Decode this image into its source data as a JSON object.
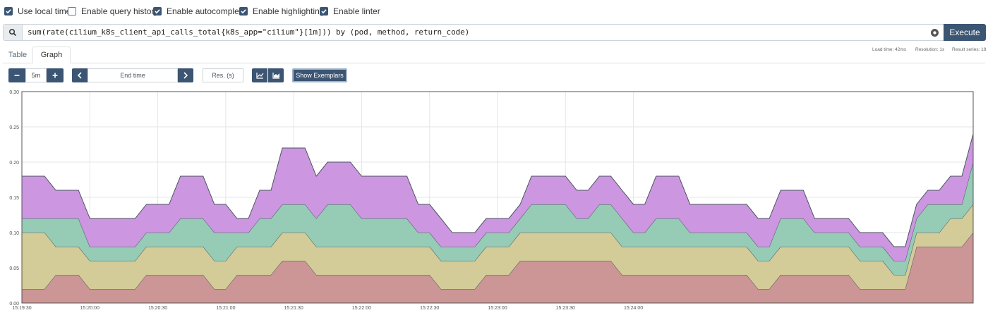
{
  "options": [
    {
      "label": "Use local time",
      "checked": true
    },
    {
      "label": "Enable query history",
      "checked": false
    },
    {
      "label": "Enable autocomplete",
      "checked": true
    },
    {
      "label": "Enable highlighting",
      "checked": true
    },
    {
      "label": "Enable linter",
      "checked": true
    }
  ],
  "query": {
    "expression": "sum(rate(cilium_k8s_client_api_calls_total{k8s_app=\"cilium\"}[1m])) by (pod, method, return_code)",
    "execute_label": "Execute"
  },
  "tabs": {
    "table": "Table",
    "graph": "Graph",
    "active": "graph"
  },
  "stats": {
    "load_time": "Load time: 42ms",
    "resolution": "Resolution: 1s",
    "result_series": "Result series: 18"
  },
  "controls": {
    "range": "5m",
    "end_time_placeholder": "End time",
    "res_placeholder": "Res. (s)",
    "exemplars_label": "Show Exemplars"
  },
  "chart_data": {
    "type": "area",
    "stacked": true,
    "ylim": [
      0,
      0.3
    ],
    "y_ticks": [
      "0.00",
      "0.05",
      "0.10",
      "0.15",
      "0.20",
      "0.25",
      "0.30"
    ],
    "x_ticks": [
      "15:19:30",
      "15:20:00",
      "15:20:30",
      "15:21:00",
      "15:21:30",
      "15:22:00",
      "15:22:30",
      "15:23:00",
      "15:23:30",
      "15:24:00"
    ],
    "x_start": "15:19:30",
    "x_step_seconds": 5,
    "grid": true,
    "series_colors": [
      "#cc9696",
      "#d4cc98",
      "#96cbb6",
      "#cc96e0"
    ],
    "series": [
      {
        "values": [
          0.02,
          0.02,
          0.02,
          0.04,
          0.04,
          0.04,
          0.02,
          0.02,
          0.02,
          0.02,
          0.02,
          0.04,
          0.04,
          0.04,
          0.04,
          0.04,
          0.04,
          0.02,
          0.02,
          0.04,
          0.04,
          0.04,
          0.04,
          0.06,
          0.06,
          0.06,
          0.04,
          0.04,
          0.04,
          0.04,
          0.04,
          0.04,
          0.04,
          0.04,
          0.04,
          0.04,
          0.04,
          0.02,
          0.02,
          0.02,
          0.02,
          0.04,
          0.04,
          0.04,
          0.06,
          0.06,
          0.06,
          0.06,
          0.06,
          0.06,
          0.06,
          0.06,
          0.06,
          0.04,
          0.04,
          0.04,
          0.04,
          0.04,
          0.04,
          0.04,
          0.04,
          0.04,
          0.04,
          0.04,
          0.04,
          0.02,
          0.02,
          0.04,
          0.04,
          0.04,
          0.04,
          0.04,
          0.04,
          0.04,
          0.02,
          0.02,
          0.02,
          0.02,
          0.02,
          0.08,
          0.08,
          0.08,
          0.08,
          0.08,
          0.1
        ]
      },
      {
        "values": [
          0.08,
          0.08,
          0.08,
          0.04,
          0.04,
          0.04,
          0.04,
          0.04,
          0.04,
          0.04,
          0.04,
          0.04,
          0.04,
          0.04,
          0.04,
          0.04,
          0.04,
          0.04,
          0.04,
          0.04,
          0.04,
          0.04,
          0.04,
          0.04,
          0.04,
          0.04,
          0.04,
          0.04,
          0.04,
          0.04,
          0.04,
          0.04,
          0.04,
          0.04,
          0.04,
          0.04,
          0.04,
          0.04,
          0.04,
          0.04,
          0.04,
          0.04,
          0.04,
          0.04,
          0.04,
          0.04,
          0.04,
          0.04,
          0.04,
          0.04,
          0.04,
          0.04,
          0.04,
          0.04,
          0.04,
          0.04,
          0.04,
          0.04,
          0.04,
          0.04,
          0.04,
          0.04,
          0.04,
          0.04,
          0.04,
          0.04,
          0.04,
          0.04,
          0.04,
          0.04,
          0.04,
          0.04,
          0.04,
          0.04,
          0.04,
          0.04,
          0.04,
          0.02,
          0.02,
          0.02,
          0.02,
          0.02,
          0.04,
          0.04,
          0.04
        ]
      },
      {
        "values": [
          0.02,
          0.02,
          0.02,
          0.04,
          0.04,
          0.04,
          0.02,
          0.02,
          0.02,
          0.02,
          0.02,
          0.02,
          0.02,
          0.02,
          0.04,
          0.04,
          0.04,
          0.04,
          0.04,
          0.02,
          0.02,
          0.04,
          0.04,
          0.04,
          0.04,
          0.04,
          0.04,
          0.06,
          0.06,
          0.06,
          0.04,
          0.04,
          0.04,
          0.04,
          0.04,
          0.02,
          0.02,
          0.02,
          0.02,
          0.02,
          0.02,
          0.02,
          0.02,
          0.02,
          0.02,
          0.04,
          0.04,
          0.04,
          0.04,
          0.02,
          0.02,
          0.04,
          0.04,
          0.04,
          0.02,
          0.02,
          0.04,
          0.04,
          0.04,
          0.02,
          0.02,
          0.02,
          0.02,
          0.02,
          0.02,
          0.02,
          0.02,
          0.04,
          0.04,
          0.04,
          0.02,
          0.02,
          0.02,
          0.02,
          0.02,
          0.02,
          0.02,
          0.02,
          0.02,
          0.02,
          0.04,
          0.04,
          0.02,
          0.02,
          0.06
        ]
      },
      {
        "values": [
          0.06,
          0.06,
          0.06,
          0.04,
          0.04,
          0.04,
          0.04,
          0.04,
          0.04,
          0.04,
          0.04,
          0.04,
          0.04,
          0.04,
          0.06,
          0.06,
          0.06,
          0.04,
          0.04,
          0.02,
          0.02,
          0.04,
          0.04,
          0.08,
          0.08,
          0.08,
          0.06,
          0.06,
          0.06,
          0.06,
          0.06,
          0.06,
          0.06,
          0.06,
          0.06,
          0.04,
          0.04,
          0.04,
          0.02,
          0.02,
          0.02,
          0.02,
          0.02,
          0.02,
          0.02,
          0.04,
          0.04,
          0.04,
          0.04,
          0.04,
          0.04,
          0.04,
          0.04,
          0.04,
          0.04,
          0.04,
          0.06,
          0.06,
          0.06,
          0.04,
          0.04,
          0.04,
          0.04,
          0.04,
          0.04,
          0.04,
          0.04,
          0.04,
          0.04,
          0.04,
          0.02,
          0.02,
          0.02,
          0.02,
          0.02,
          0.02,
          0.02,
          0.02,
          0.02,
          0.02,
          0.02,
          0.02,
          0.04,
          0.04,
          0.04
        ]
      }
    ]
  }
}
